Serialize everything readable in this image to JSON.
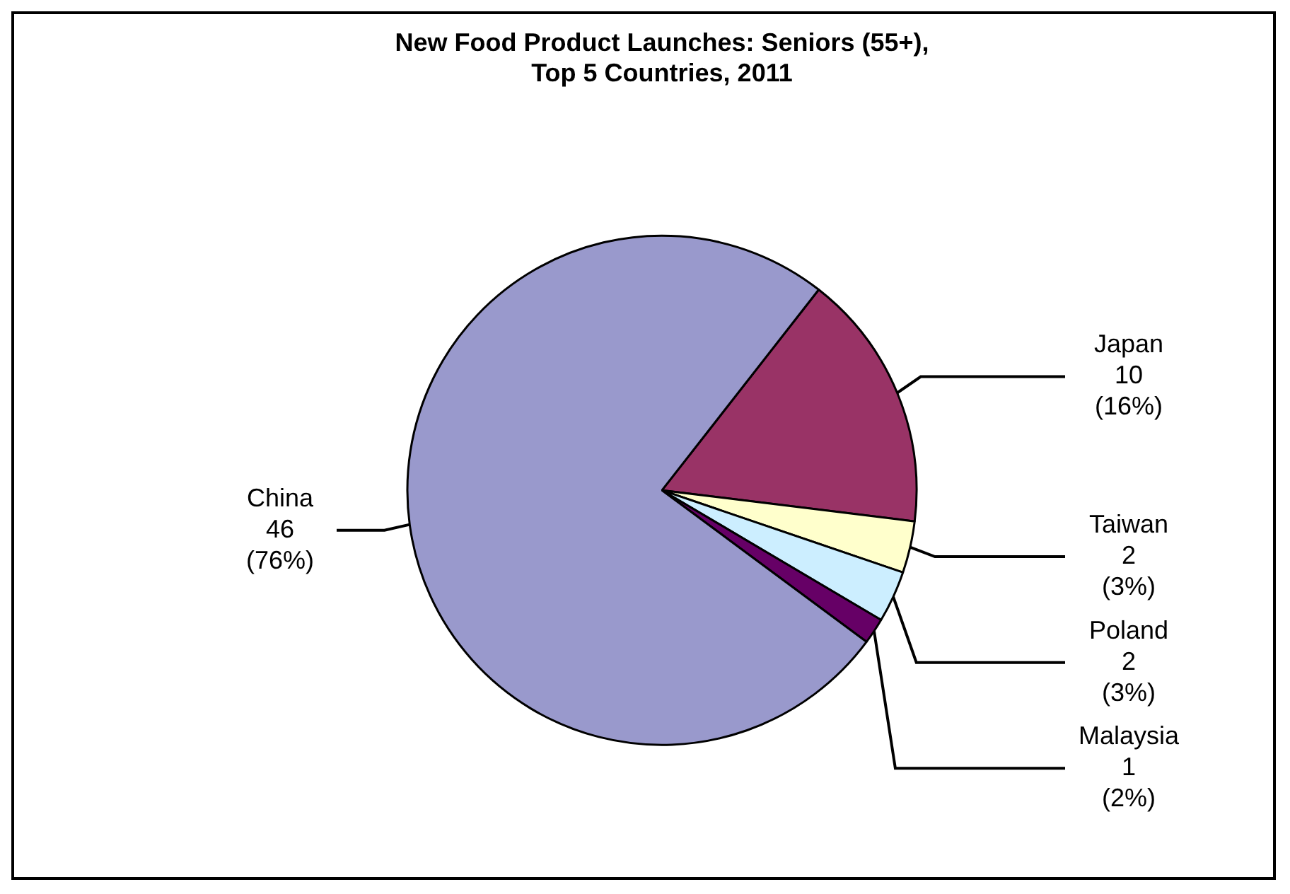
{
  "chart_data": {
    "type": "pie",
    "title": "New Food Product Launches: Seniors (55+),\nTop 5 Countries, 2011",
    "categories": [
      "Japan",
      "Taiwan",
      "Poland",
      "Malaysia",
      "China"
    ],
    "values": [
      10,
      2,
      2,
      1,
      46
    ],
    "colors": [
      "#993366",
      "#ffffcc",
      "#cceeff",
      "#660066",
      "#9999cc"
    ],
    "value_labels": [
      "10\n(16%)",
      "2\n(3%)",
      "2\n(3%)",
      "1\n(2%)",
      "46\n(76%)"
    ],
    "legend": false
  }
}
